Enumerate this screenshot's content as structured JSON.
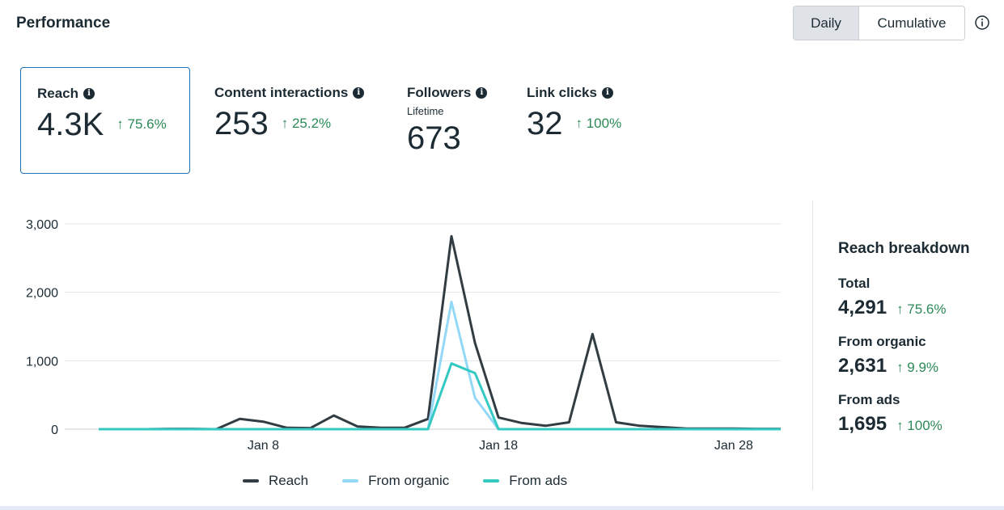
{
  "header": {
    "title": "Performance"
  },
  "toggle": {
    "daily": "Daily",
    "cumulative": "Cumulative"
  },
  "metrics": [
    {
      "label": "Reach",
      "value": "4.3K",
      "change": "↑ 75.6%"
    },
    {
      "label": "Content interactions",
      "value": "253",
      "change": "↑ 25.2%"
    },
    {
      "label": "Followers",
      "sublabel": "Lifetime",
      "value": "673"
    },
    {
      "label": "Link clicks",
      "value": "32",
      "change": "↑ 100%"
    }
  ],
  "breakdown": {
    "title": "Reach breakdown",
    "items": [
      {
        "label": "Total",
        "value": "4,291",
        "change": "↑ 75.6%"
      },
      {
        "label": "From organic",
        "value": "2,631",
        "change": "↑ 9.9%"
      },
      {
        "label": "From ads",
        "value": "1,695",
        "change": "↑ 100%"
      }
    ]
  },
  "colors": {
    "reach": "#323c43",
    "organic": "#93d8f6",
    "ads": "#34c9c2",
    "positive": "#2b8a57",
    "selected_border": "#1e73b8"
  },
  "chart_data": {
    "type": "line",
    "x": [
      1,
      2,
      3,
      4,
      5,
      6,
      7,
      8,
      9,
      10,
      11,
      12,
      13,
      14,
      15,
      16,
      17,
      18,
      19,
      20,
      21,
      22,
      23,
      24,
      25,
      26,
      27,
      28,
      29,
      30
    ],
    "xtick_positions": [
      8,
      18,
      28
    ],
    "xtick_labels": [
      "Jan 8",
      "Jan 18",
      "Jan 28"
    ],
    "ylim": [
      0,
      3000
    ],
    "yticks": [
      0,
      1000,
      2000,
      3000
    ],
    "ytick_labels": [
      "0",
      "1,000",
      "2,000",
      "3,000"
    ],
    "series": [
      {
        "name": "Reach",
        "values": [
          0,
          0,
          0,
          5,
          5,
          0,
          150,
          110,
          20,
          15,
          200,
          40,
          20,
          20,
          150,
          2820,
          1260,
          170,
          90,
          50,
          100,
          1390,
          100,
          50,
          30,
          10,
          10,
          10,
          5,
          5
        ]
      },
      {
        "name": "From organic",
        "values": [
          0,
          0,
          0,
          0,
          0,
          0,
          0,
          0,
          0,
          0,
          0,
          0,
          0,
          0,
          0,
          1860,
          460,
          0,
          0,
          0,
          0,
          0,
          0,
          0,
          0,
          0,
          0,
          0,
          0,
          0
        ]
      },
      {
        "name": "From ads",
        "values": [
          0,
          0,
          0,
          0,
          0,
          0,
          0,
          0,
          0,
          0,
          0,
          0,
          0,
          0,
          0,
          960,
          820,
          0,
          0,
          0,
          0,
          0,
          0,
          0,
          0,
          0,
          0,
          0,
          0,
          0
        ]
      }
    ],
    "legend": [
      "Reach",
      "From organic",
      "From ads"
    ]
  }
}
